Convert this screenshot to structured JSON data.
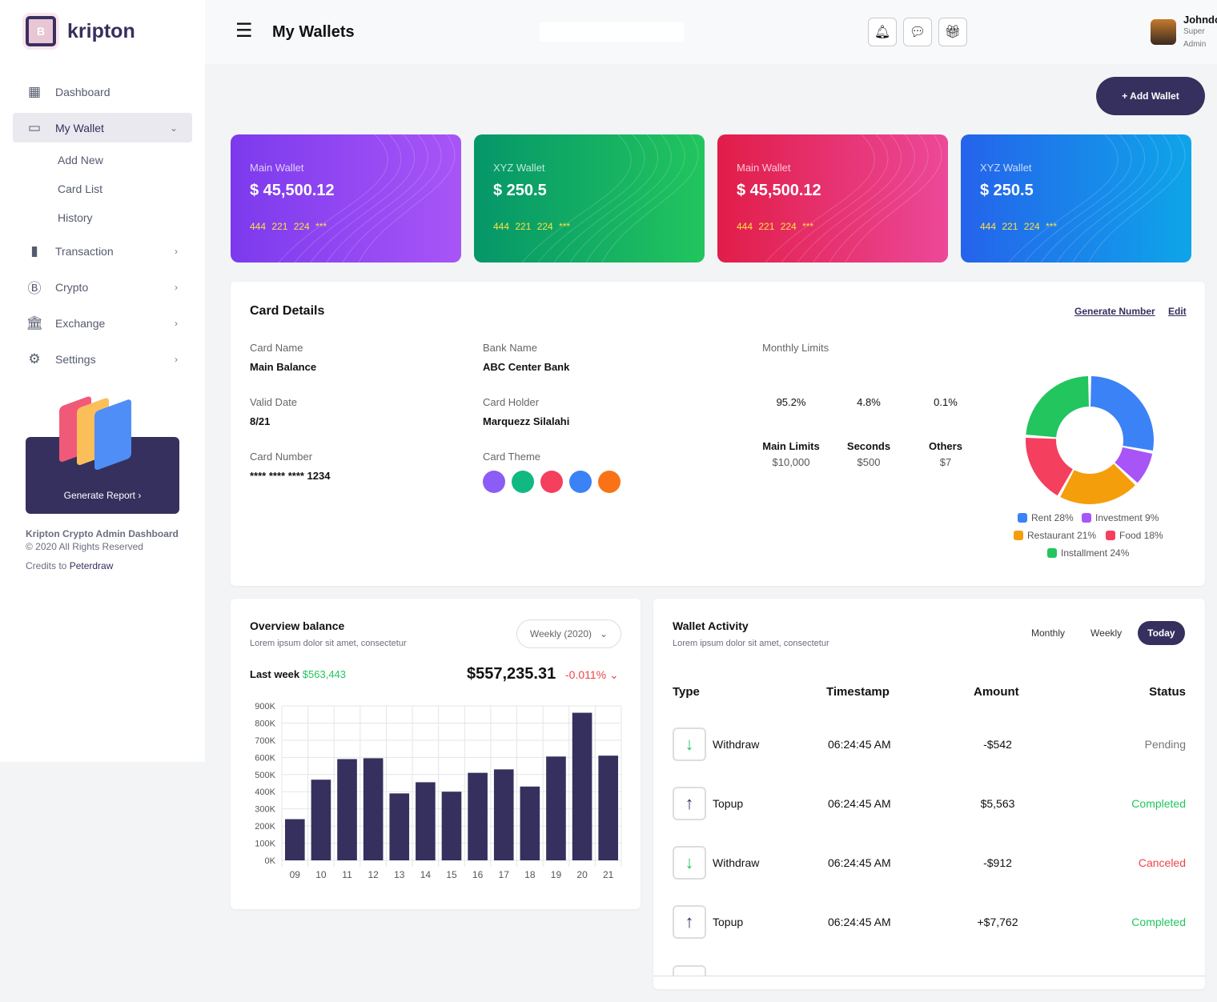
{
  "brand": {
    "name": "kripton",
    "chip_letter": "B"
  },
  "sidebar": {
    "items": [
      {
        "label": "Dashboard",
        "icon": "grid-icon"
      },
      {
        "label": "My Wallet",
        "icon": "card-icon",
        "expanded": true
      },
      {
        "label": "Transaction",
        "icon": "bar-chart-icon"
      },
      {
        "label": "Crypto",
        "icon": "bitcoin-icon"
      },
      {
        "label": "Exchange",
        "icon": "bank-icon"
      },
      {
        "label": "Settings",
        "icon": "gear-icon"
      }
    ],
    "sub_items": [
      "Add New",
      "Card List",
      "History"
    ],
    "promo_button": "Generate Report",
    "footer_title": "Kripton Crypto Admin Dashboard",
    "footer_copy": "© 2020 All Rights Reserved",
    "credits_prefix": "Credits to",
    "credits_name": "Peterdraw"
  },
  "header": {
    "title": "My Wallets",
    "user_name": "Johndo",
    "user_role_1": "Super",
    "user_role_2": "Admin",
    "icons": [
      "bell-icon",
      "chat-icon",
      "gift-icon"
    ]
  },
  "add_wallet": "+ Add Wallet",
  "wallets": [
    {
      "label": "Main Wallet",
      "amount": "$ 45,500.12",
      "number": "444 221 224 ***",
      "colors": [
        "#7c3aed",
        "#a855f7"
      ]
    },
    {
      "label": "XYZ Wallet",
      "amount": "$ 250.5",
      "number": "444 221 224 ***",
      "colors": [
        "#059669",
        "#22c55e"
      ]
    },
    {
      "label": "Main Wallet",
      "amount": "$ 45,500.12",
      "number": "444 221 224 ***",
      "colors": [
        "#e11d48",
        "#ec4899"
      ]
    },
    {
      "label": "XYZ Wallet",
      "amount": "$ 250.5",
      "number": "444 221 224 ***",
      "colors": [
        "#2563eb",
        "#0ea5e9"
      ]
    }
  ],
  "card_details": {
    "title": "Card Details",
    "generate": "Generate Number",
    "edit": "Edit",
    "card_name_label": "Card Name",
    "card_name": "Main Balance",
    "bank_label": "Bank Name",
    "bank": "ABC Center Bank",
    "valid_label": "Valid Date",
    "valid": "8/21",
    "holder_label": "Card Holder",
    "holder": "Marquezz Silalahi",
    "number_label": "Card Number",
    "number": "**** **** **** 1234",
    "theme_label": "Card Theme",
    "theme_colors": [
      "#8b5cf6",
      "#10b981",
      "#f43f5e",
      "#3b82f6",
      "#f97316"
    ],
    "limits_label": "Monthly Limits",
    "limits": [
      {
        "pct": "95.2%",
        "name": "Main Limits",
        "amount": "$10,000"
      },
      {
        "pct": "4.8%",
        "name": "Seconds",
        "amount": "$500"
      },
      {
        "pct": "0.1%",
        "name": "Others",
        "amount": "$7"
      }
    ]
  },
  "donut": {
    "type": "pie",
    "slices": [
      {
        "label": "Rent 28%",
        "value": 28,
        "color": "#3b82f6"
      },
      {
        "label": "Investment 9%",
        "value": 9,
        "color": "#a855f7"
      },
      {
        "label": "Restaurant 21%",
        "value": 21,
        "color": "#f59e0b"
      },
      {
        "label": "Food 18%",
        "value": 18,
        "color": "#f43f5e"
      },
      {
        "label": "Installment 24%",
        "value": 24,
        "color": "#22c55e"
      }
    ]
  },
  "overview": {
    "title": "Overview balance",
    "subtitle": "Lorem ipsum dolor sit amet, consectetur",
    "period": "Weekly (2020)",
    "last_week_label": "Last week",
    "last_week": "$563,443",
    "balance": "$557,235.31",
    "change": "-0.011%"
  },
  "chart_data": {
    "type": "bar",
    "categories": [
      "09",
      "10",
      "11",
      "12",
      "13",
      "14",
      "15",
      "16",
      "17",
      "18",
      "19",
      "20",
      "21"
    ],
    "values": [
      240,
      470,
      590,
      595,
      390,
      455,
      400,
      510,
      530,
      430,
      605,
      860,
      610
    ],
    "ylim": [
      0,
      900
    ],
    "yticks": [
      "0K",
      "100K",
      "200K",
      "300K",
      "400K",
      "500K",
      "600K",
      "700K",
      "800K",
      "900K"
    ],
    "grid": true,
    "color": "#35305e"
  },
  "activity": {
    "title": "Wallet Activity",
    "subtitle": "Lorem ipsum dolor sit amet, consectetur",
    "tabs": [
      "Monthly",
      "Weekly",
      "Today"
    ],
    "active_tab": "Today",
    "headers": [
      "Type",
      "Timestamp",
      "Amount",
      "Status"
    ],
    "rows": [
      {
        "type": "Withdraw",
        "dir": "down",
        "time": "06:24:45 AM",
        "amount": "-$542",
        "status": "Pending",
        "color": "#777"
      },
      {
        "type": "Topup",
        "dir": "up",
        "time": "06:24:45 AM",
        "amount": "$5,563",
        "status": "Completed",
        "color": "#22c55e"
      },
      {
        "type": "Withdraw",
        "dir": "down",
        "time": "06:24:45 AM",
        "amount": "-$912",
        "status": "Canceled",
        "color": "#ef4444"
      },
      {
        "type": "Topup",
        "dir": "up",
        "time": "06:24:45 AM",
        "amount": "+$7,762",
        "status": "Completed",
        "color": "#22c55e"
      }
    ]
  }
}
